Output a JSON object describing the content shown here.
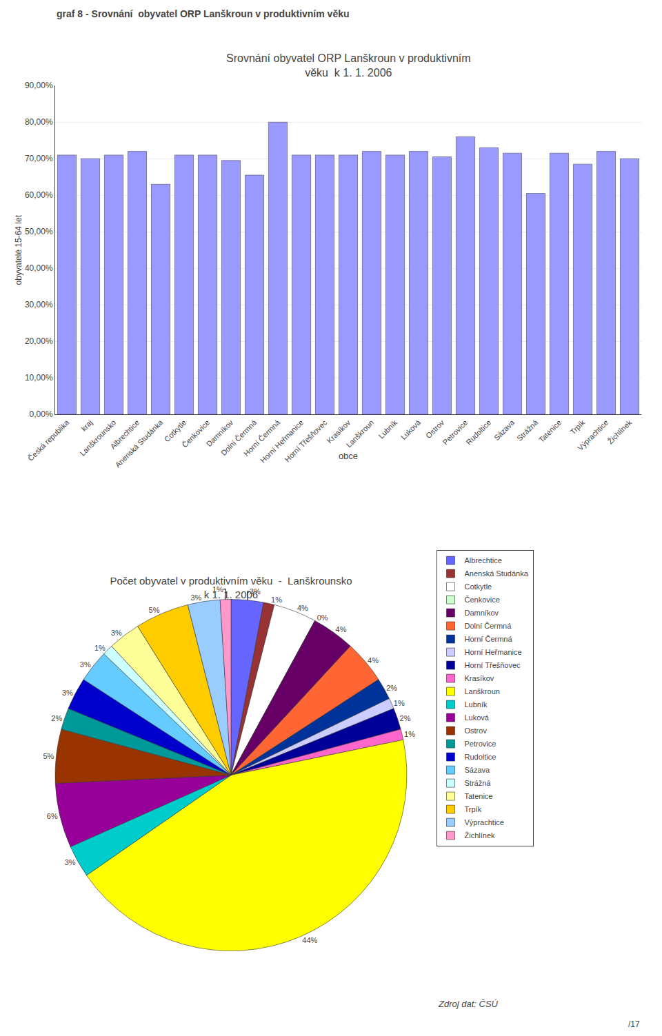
{
  "chart_data": [
    {
      "type": "bar",
      "title": "Srovnání obyvatel ORP Lanškroun v produktivním\nvěku  k 1. 1. 2006",
      "annotations": [
        "graf 8 - Srovnání  obyvatel ORP Lanškroun v produktivním věku"
      ],
      "xlabel": "obce",
      "ylabel": "obyvatelé 15-64 let",
      "categories": [
        "Česká republika",
        "kraj",
        "Lanškrounsko",
        "Albrechtice",
        "Anenská Studánka",
        "Cotkytle",
        "Čenkovice",
        "Damníkov",
        "Dolní Čermná",
        "Horní Čermná",
        "Horní Heřmanice",
        "Horní Třešňovec",
        "Krasíkov",
        "Lanškroun",
        "Lubník",
        "Luková",
        "Ostrov",
        "Petrovice",
        "Rudoltice",
        "Sázava",
        "Strážná",
        "Tatenice",
        "Trpík",
        "Výprachtice",
        "Žichlínek"
      ],
      "values": [
        0.71,
        0.7,
        0.71,
        0.72,
        0.63,
        0.71,
        0.71,
        0.695,
        0.655,
        0.8,
        0.71,
        0.71,
        0.71,
        0.72,
        0.71,
        0.72,
        0.705,
        0.76,
        0.73,
        0.715,
        0.605,
        0.715,
        0.685,
        0.72,
        0.7
      ],
      "color": "#9999ff",
      "ylim": [
        0,
        0.9
      ],
      "yticks": [
        {
          "value": 0,
          "label": "0,00%"
        },
        {
          "value": 0.1,
          "label": "10,00%"
        },
        {
          "value": 0.2,
          "label": "20,00%"
        },
        {
          "value": 0.3,
          "label": "30,00%"
        },
        {
          "value": 0.4,
          "label": "40,00%"
        },
        {
          "value": 0.5,
          "label": "50,00%"
        },
        {
          "value": 0.6,
          "label": "60,00%"
        },
        {
          "value": 0.7,
          "label": "70,00%"
        },
        {
          "value": 0.8,
          "label": "80,00%"
        },
        {
          "value": 0.9,
          "label": "90,00%"
        }
      ],
      "grid": true
    },
    {
      "type": "pie",
      "title": "Počet obyvatel v produktivním věku  -  Lanškrounsko\nk 1. 1. 2006",
      "categories": [
        "Albrechtice",
        "Anenská Studánka",
        "Cotkytle",
        "Čenkovice",
        "Damníkov",
        "Dolní Čermná",
        "Horní Čermná",
        "Horní Heřmanice",
        "Horní Třešňovec",
        "Krasíkov",
        "Lanškroun",
        "Lubník",
        "Luková",
        "Ostrov",
        "Petrovice",
        "Rudoltice",
        "Sázava",
        "Strážná",
        "Tatenice",
        "Trpík",
        "Výprachtice",
        "Žichlínek"
      ],
      "values": [
        3,
        1,
        4,
        0,
        4,
        4,
        2,
        1,
        2,
        1,
        44,
        3,
        6,
        5,
        2,
        3,
        3,
        1,
        3,
        5,
        3,
        1
      ],
      "value_labels": [
        "3%",
        "1%",
        "4%",
        "0%",
        "4%",
        "4%",
        "2%",
        "1%",
        "2%",
        "1%",
        "44%",
        "3%",
        "6%",
        "5%",
        "2%",
        "3%",
        "3%",
        "1%",
        "3%",
        "5%",
        "3%",
        "1%"
      ],
      "colors": [
        "#6666ff",
        "#993333",
        "#ffffff",
        "#ccffcc",
        "#660066",
        "#ff6633",
        "#003399",
        "#ccccff",
        "#000099",
        "#ff66cc",
        "#ffff00",
        "#00cccc",
        "#990099",
        "#993300",
        "#009999",
        "#0000cc",
        "#66ccff",
        "#ccffff",
        "#ffff99",
        "#ffcc00",
        "#99ccff",
        "#ff99cc"
      ],
      "data_labels": true,
      "legend": "right",
      "annotations": [
        "Zdroj dat: ČSÚ",
        "/17"
      ]
    }
  ]
}
